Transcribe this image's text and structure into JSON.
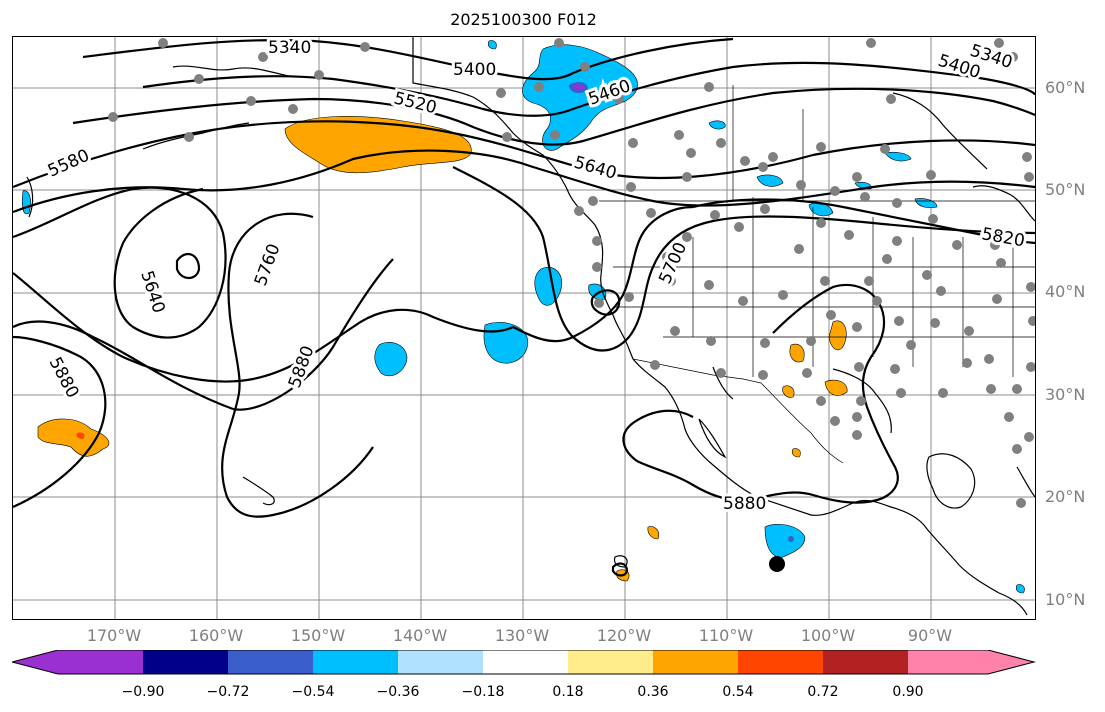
{
  "title": "2025100300 F012",
  "lat_labels": [
    "60°N",
    "50°N",
    "40°N",
    "30°N",
    "20°N",
    "10°N"
  ],
  "lon_labels": [
    "170°W",
    "160°W",
    "150°W",
    "140°W",
    "130°W",
    "120°W",
    "110°W",
    "100°W",
    "90°W"
  ],
  "contour_labels": [
    "5340",
    "5400",
    "5520",
    "5460",
    "5580",
    "5640",
    "5640",
    "5760",
    "5700",
    "5880",
    "5880",
    "5880",
    "5400",
    "5340",
    "5820"
  ],
  "colorbar": {
    "ticks": [
      "−0.90",
      "−0.72",
      "−0.54",
      "−0.36",
      "−0.18",
      "0.18",
      "0.36",
      "0.54",
      "0.72",
      "0.90"
    ],
    "colors": [
      "#9b30d0",
      "#00008b",
      "#3a5fcd",
      "#00bfff",
      "#b0e2ff",
      "#ffffff",
      "#ffec8b",
      "#ffa500",
      "#ff4500",
      "#b22222",
      "#ff82ab",
      "#ff82ab"
    ]
  },
  "colors": {
    "contour": "#000000",
    "coast": "#000000",
    "grid": "#8c8c8c",
    "station": "#808080",
    "positive": "#ffa500",
    "negative": "#00bfff"
  }
}
